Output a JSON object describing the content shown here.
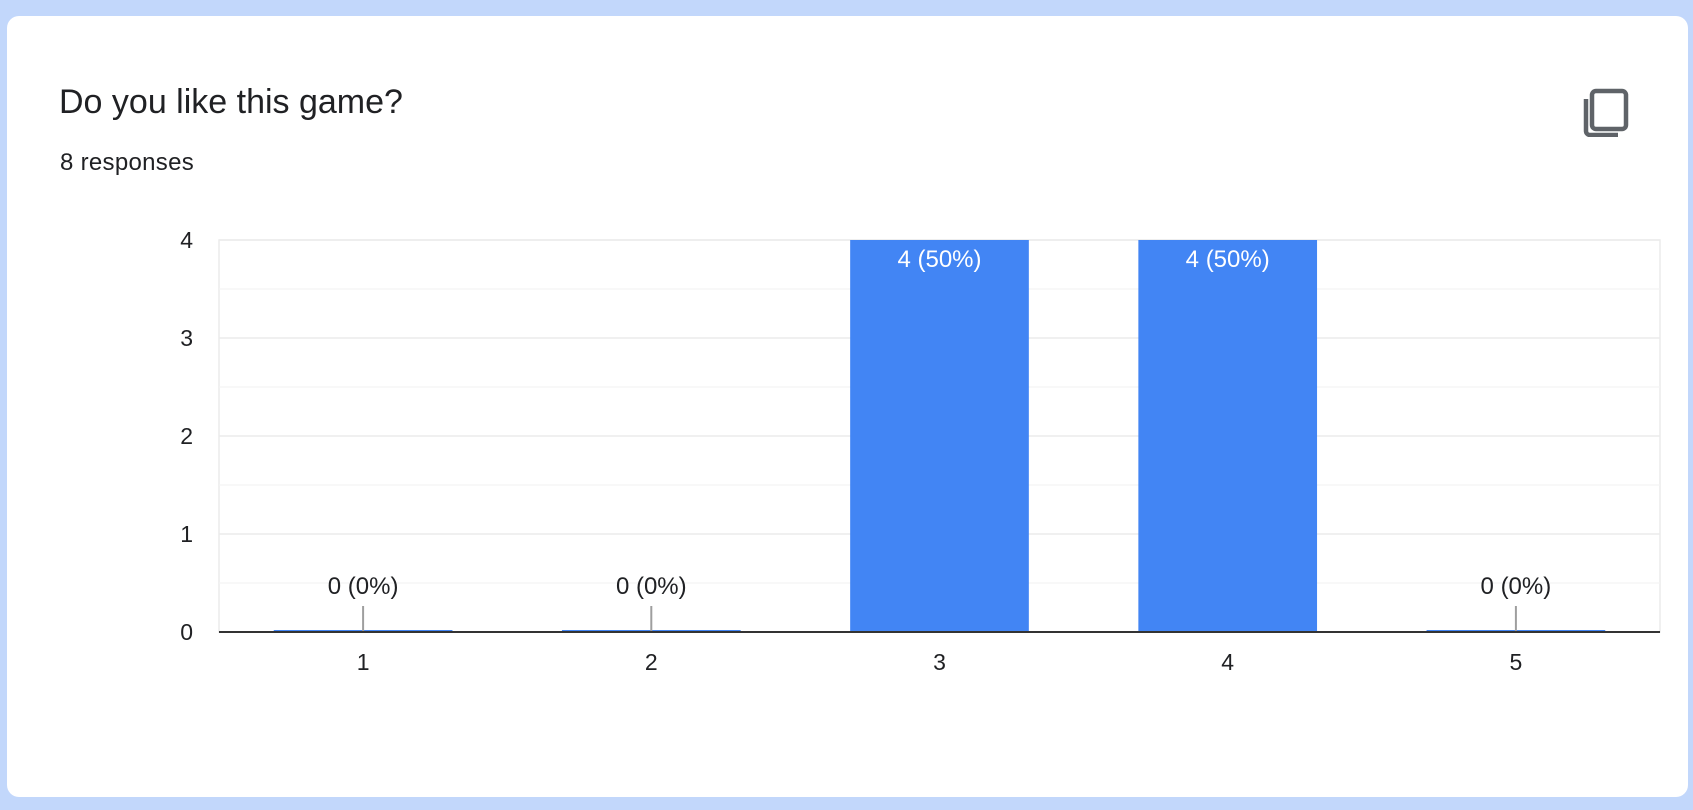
{
  "card": {
    "title": "Do you like this game?",
    "responses": "8 responses",
    "copy_icon": "copy-icon"
  },
  "colors": {
    "page_background": "#c2d7fb",
    "bar": "#4285f4",
    "gridline": "#ebebeb",
    "axis": "#333333",
    "text": "#202124"
  },
  "chart_data": {
    "type": "bar",
    "title": "",
    "xlabel": "",
    "ylabel": "",
    "categories": [
      "1",
      "2",
      "3",
      "4",
      "5"
    ],
    "values": [
      0,
      0,
      4,
      4,
      0
    ],
    "data_labels": [
      "0 (0%)",
      "0 (0%)",
      "4 (50%)",
      "4 (50%)",
      "0 (0%)"
    ],
    "ylim": [
      0,
      4
    ],
    "yticks": [
      0,
      1,
      2,
      3,
      4
    ],
    "grid": true,
    "legend": "none"
  }
}
